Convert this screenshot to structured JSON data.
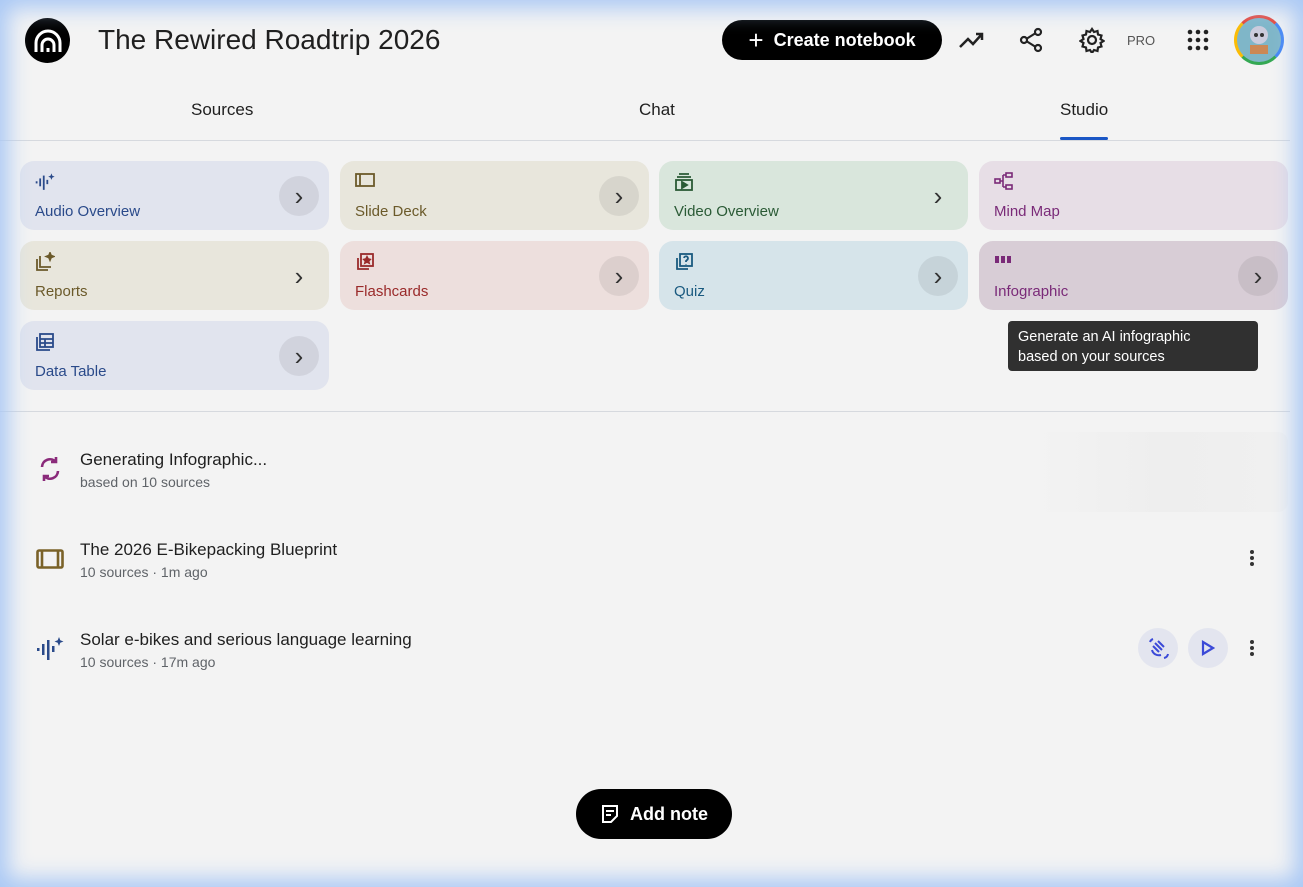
{
  "header": {
    "title": "The Rewired Roadtrip 2026",
    "create_label": "Create notebook",
    "pro_label": "PRO"
  },
  "tabs": [
    {
      "label": "Sources"
    },
    {
      "label": "Chat"
    },
    {
      "label": "Studio",
      "active": true
    }
  ],
  "studio_cards": [
    {
      "label": "Audio Overview",
      "icon": "audio-waveform-icon",
      "bg": "#e1e4ee",
      "color": "#2a4a8a"
    },
    {
      "label": "Slide Deck",
      "icon": "slide-deck-icon",
      "bg": "#e8e6dc",
      "color": "#6b5a2a"
    },
    {
      "label": "Video Overview",
      "icon": "video-icon",
      "bg": "#d9e6dc",
      "color": "#2a5a35"
    },
    {
      "label": "Mind Map",
      "icon": "mind-map-icon",
      "bg": "#e7dee6",
      "color": "#7a2a78"
    },
    {
      "label": "Reports",
      "icon": "reports-icon",
      "bg": "#e8e6dc",
      "color": "#6b5a2a"
    },
    {
      "label": "Flashcards",
      "icon": "flashcards-icon",
      "bg": "#eddfdd",
      "color": "#9a2a2a"
    },
    {
      "label": "Quiz",
      "icon": "quiz-icon",
      "bg": "#d6e4ea",
      "color": "#1a5a80"
    },
    {
      "label": "Infographic",
      "icon": "infographic-icon",
      "bg": "#d8cdd6",
      "color": "#7a2a78"
    },
    {
      "label": "Data Table",
      "icon": "table-icon",
      "bg": "#e1e4ee",
      "color": "#2a4a8a"
    }
  ],
  "tooltip": {
    "line1": "Generate an AI infographic",
    "line2": "based on your sources"
  },
  "items": [
    {
      "title": "Generating Infographic...",
      "subtitle": "based on 10 sources",
      "icon": "sync-icon"
    },
    {
      "title": "The 2026 E-Bikepacking Blueprint",
      "subtitle": "10 sources · 1m ago",
      "icon": "slide-deck-icon"
    },
    {
      "title": "Solar e-bikes and serious language learning",
      "subtitle": "10 sources · 17m ago",
      "icon": "audio-waveform-icon"
    }
  ],
  "add_note_label": "Add note",
  "colors": {
    "accent": "#1a56c5",
    "infographic": "#7a2a78"
  }
}
